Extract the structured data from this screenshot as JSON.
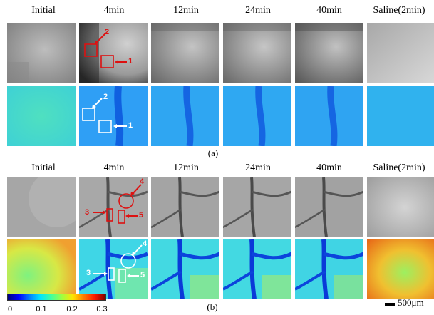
{
  "section_a": {
    "headers": [
      "Initial",
      "4min",
      "12min",
      "24min",
      "40min",
      "Saline(2min)"
    ],
    "caption": "(a)",
    "markers": [
      {
        "label": "2",
        "color": "#d11"
      },
      {
        "label": "1",
        "color": "#d11"
      },
      {
        "label": "2",
        "color": "#fff"
      },
      {
        "label": "1",
        "color": "#fff"
      }
    ]
  },
  "section_b": {
    "headers": [
      "Initial",
      "4min",
      "12min",
      "24min",
      "40min",
      "Saline(2min)"
    ],
    "caption": "(b)",
    "markers": [
      {
        "label": "4",
        "color": "#d11"
      },
      {
        "label": "3",
        "color": "#d11"
      },
      {
        "label": "5",
        "color": "#d11"
      },
      {
        "label": "4",
        "color": "#fff"
      },
      {
        "label": "3",
        "color": "#fff"
      },
      {
        "label": "5",
        "color": "#fff"
      }
    ]
  },
  "colorbar": {
    "ticks": [
      "0",
      "0.1",
      "0.2",
      "0.3"
    ]
  },
  "scale": {
    "label": "500μm"
  }
}
